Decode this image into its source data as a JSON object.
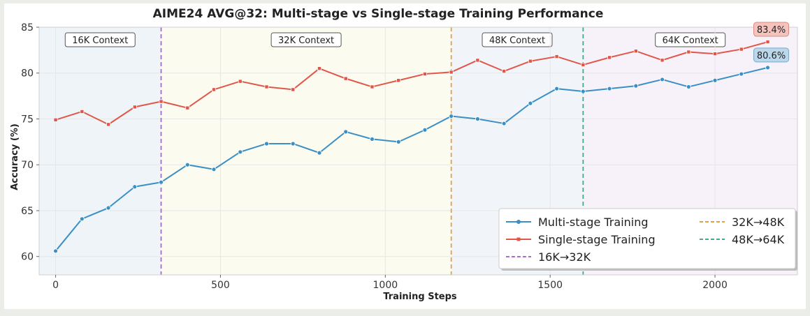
{
  "chart_data": {
    "type": "line",
    "title": "AIME24 AVG@32: Multi-stage vs Single-stage Training Performance",
    "xlabel": "Training Steps",
    "ylabel": "Accuracy (%)",
    "xlim": [
      -50,
      2250
    ],
    "ylim": [
      58,
      85
    ],
    "xticks": [
      0,
      500,
      1000,
      1500,
      2000
    ],
    "yticks": [
      60,
      65,
      70,
      75,
      80,
      85
    ],
    "grid": true,
    "legend_position": "lower-right",
    "x": [
      0,
      80,
      160,
      240,
      320,
      400,
      480,
      560,
      640,
      720,
      800,
      880,
      960,
      1040,
      1120,
      1200,
      1280,
      1360,
      1440,
      1520,
      1600,
      1680,
      1760,
      1840,
      1920,
      2000,
      2080,
      2160
    ],
    "series": [
      {
        "name": "Multi-stage Training",
        "color": "#3a8fc4",
        "marker": "circle",
        "values": [
          60.6,
          64.1,
          65.3,
          67.6,
          68.1,
          70.0,
          69.5,
          71.4,
          72.3,
          72.3,
          71.3,
          73.6,
          72.8,
          72.5,
          73.8,
          75.3,
          75.0,
          74.5,
          76.7,
          78.3,
          78.0,
          78.3,
          78.6,
          79.3,
          78.5,
          79.2,
          79.9,
          80.6
        ],
        "end_label": "80.6%",
        "end_label_bg": "#bcd7ea",
        "end_label_border": "#7aa8c8"
      },
      {
        "name": "Single-stage Training",
        "color": "#e0574a",
        "marker": "square",
        "values": [
          74.9,
          75.8,
          74.4,
          76.3,
          76.9,
          76.2,
          78.2,
          79.1,
          78.5,
          78.2,
          80.5,
          79.4,
          78.5,
          79.2,
          79.9,
          80.1,
          81.4,
          80.2,
          81.3,
          81.8,
          80.9,
          81.7,
          82.4,
          81.4,
          82.3,
          82.1,
          82.6,
          83.4
        ],
        "end_label": "83.4%",
        "end_label_bg": "#f5c3bd",
        "end_label_border": "#d98a80"
      }
    ],
    "transitions": [
      {
        "name": "16K→32K",
        "x": 320,
        "color": "#a46fc8"
      },
      {
        "name": "32K→48K",
        "x": 1200,
        "color": "#e0a24a"
      },
      {
        "name": "48K→64K",
        "x": 1600,
        "color": "#45a98b"
      }
    ],
    "regions": [
      {
        "label": "16K Context",
        "x0": -50,
        "x1": 320,
        "color": "#eef4f8"
      },
      {
        "label": "32K Context",
        "x0": 320,
        "x1": 1200,
        "color": "#fbfbef"
      },
      {
        "label": "48K Context",
        "x0": 1200,
        "x1": 1600,
        "color": "#f1f5fa"
      },
      {
        "label": "64K Context",
        "x0": 1600,
        "x1": 2250,
        "color": "#f7f1fa"
      }
    ]
  }
}
